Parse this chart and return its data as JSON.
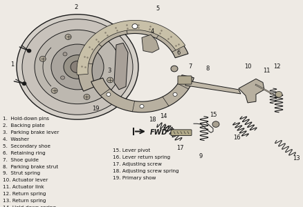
{
  "background_color": "#eeeae4",
  "line_color": "#1a1a1a",
  "text_color": "#111111",
  "legend_col1": [
    "1.  Hold-down pins",
    "2.  Backing plate",
    "3.  Parking brake lever",
    "4.  Washer",
    "5.  Secondary shoe",
    "6.  Retaining ring",
    "7.  Shoe guide",
    "8.  Parking brake strut",
    "9.  Strut spring",
    "10. Actuator lever",
    "11. Actuator link",
    "12. Return spring",
    "13. Return spring",
    "14. Hold-down spring"
  ],
  "legend_col2": [
    "15. Lever pivot",
    "16. Lever return spring",
    "17. Adjusting screw",
    "18. Adjusting screw spring",
    "19. Primary show"
  ],
  "legend_fontsize": 5.2,
  "number_fontsize": 6.0,
  "fwd_text": "FWD"
}
